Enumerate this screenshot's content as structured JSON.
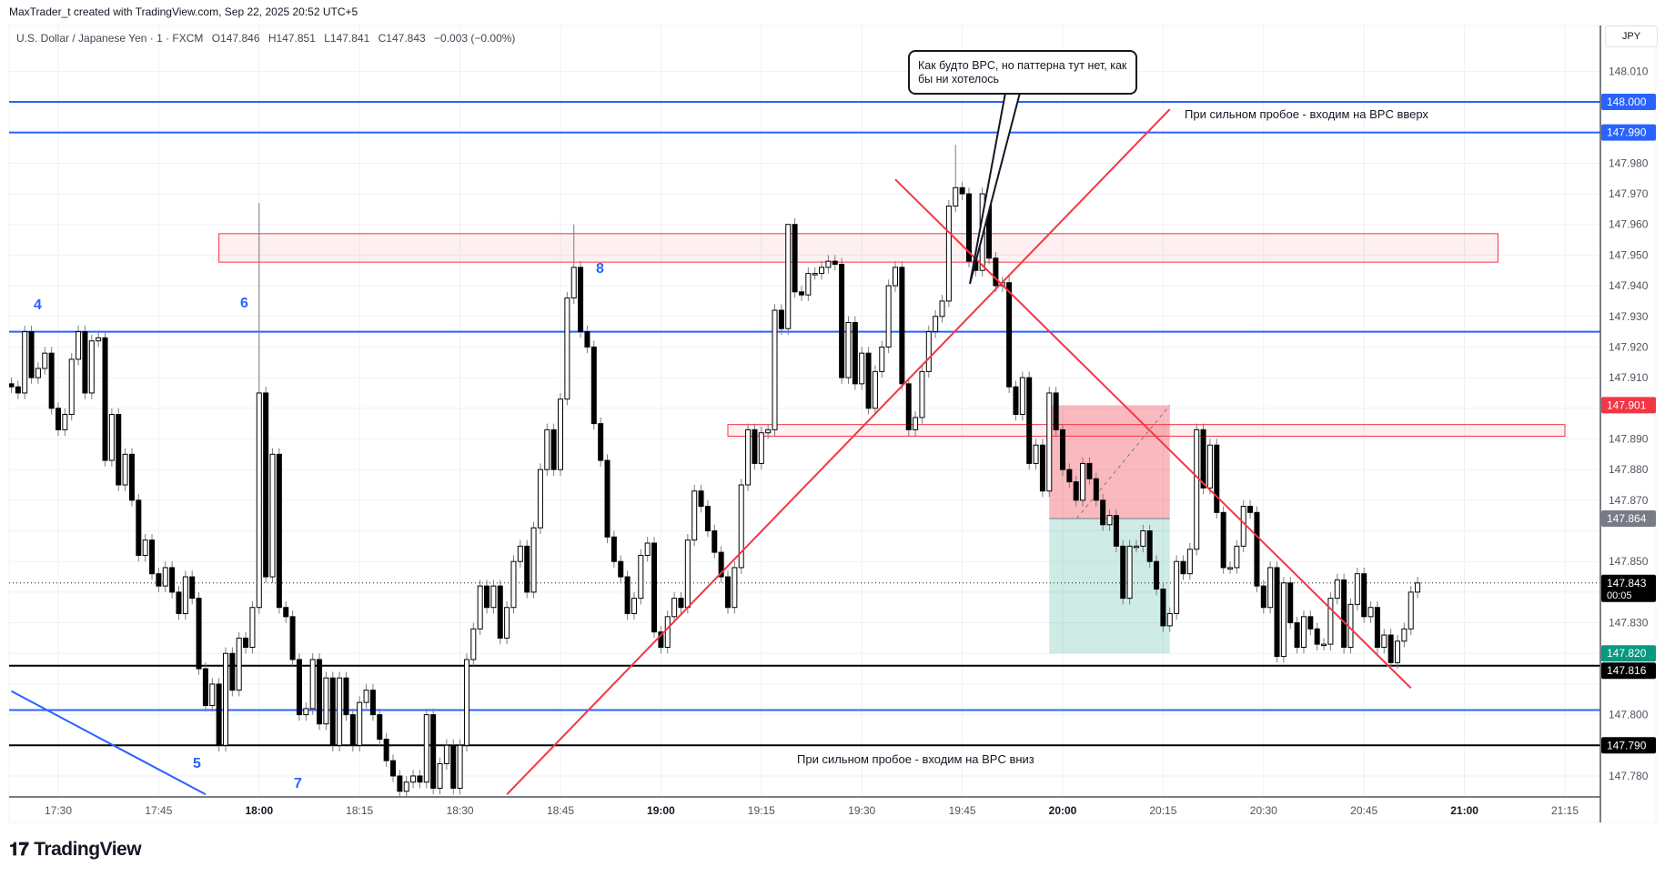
{
  "header": {
    "credit": "MaxTrader_t created with TradingView.com, Sep 22, 2025 20:52 UTC+5",
    "symbol": "U.S. Dollar / Japanese Yen · 1 · FXCM",
    "open": "O147.846",
    "high": "H147.851",
    "low": "L147.841",
    "close": "C147.843",
    "change": "−0.003 (−0.00%)",
    "currency": "JPY"
  },
  "annotations": {
    "callout": "Как будто BPC, но паттерна тут нет, как бы ни хотелось",
    "note_up": "При сильном пробое - входим на BPC вверх",
    "note_down": "При сильном пробое - входим на BPC вниз",
    "waves": [
      "4",
      "5",
      "6",
      "7",
      "8"
    ]
  },
  "logo": "TradingView",
  "colors": {
    "blue": "#2962ff",
    "red": "#f23645",
    "teal": "#089981",
    "gray": "#787b86",
    "black": "#000000"
  },
  "chart_data": {
    "type": "candlestick",
    "symbol": "USDJPY",
    "interval": "1m",
    "start_time": "17:23",
    "closes": [
      147.907,
      147.905,
      147.925,
      147.91,
      147.913,
      147.918,
      147.9,
      147.893,
      147.898,
      147.916,
      147.925,
      147.905,
      147.922,
      147.923,
      147.883,
      147.898,
      147.875,
      147.885,
      147.87,
      147.852,
      147.857,
      147.846,
      147.842,
      147.848,
      147.84,
      147.833,
      147.845,
      147.838,
      147.815,
      147.803,
      147.81,
      147.79,
      147.82,
      147.808,
      147.825,
      147.822,
      147.835,
      147.905,
      147.845,
      147.885,
      147.835,
      147.832,
      147.818,
      147.8,
      147.802,
      147.818,
      147.797,
      147.812,
      147.79,
      147.812,
      147.8,
      147.79,
      147.804,
      147.808,
      147.8,
      147.792,
      147.785,
      147.78,
      147.775,
      147.778,
      147.78,
      147.778,
      147.8,
      147.776,
      147.784,
      147.79,
      147.776,
      147.79,
      147.818,
      147.828,
      147.842,
      147.835,
      147.842,
      147.825,
      147.835,
      147.85,
      147.855,
      147.84,
      147.861,
      147.88,
      147.893,
      147.88,
      147.903,
      147.936,
      147.946,
      147.925,
      147.92,
      147.895,
      147.883,
      147.858,
      147.85,
      147.845,
      147.833,
      147.838,
      147.852,
      147.856,
      147.827,
      147.822,
      147.832,
      147.838,
      147.835,
      147.857,
      147.873,
      147.868,
      147.86,
      147.853,
      147.845,
      147.835,
      147.848,
      147.875,
      147.893,
      147.882,
      147.892,
      147.893,
      147.932,
      147.926,
      147.96,
      147.938,
      147.937,
      147.944,
      147.944,
      147.946,
      147.948,
      147.947,
      147.91,
      147.928,
      147.908,
      147.918,
      147.9,
      147.912,
      147.92,
      147.94,
      147.946,
      147.908,
      147.893,
      147.897,
      147.912,
      147.925,
      147.93,
      147.935,
      147.966,
      147.972,
      147.97,
      147.948,
      147.945,
      147.97,
      147.949,
      147.94,
      147.941,
      147.907,
      147.898,
      147.91,
      147.882,
      147.888,
      147.873,
      147.905,
      147.893,
      147.88,
      147.876,
      147.87,
      147.882,
      147.877,
      147.87,
      147.862,
      147.865,
      147.855,
      147.838,
      147.855,
      147.855,
      147.86,
      147.85,
      147.841,
      147.829,
      147.833,
      147.85,
      147.846,
      147.854,
      147.893,
      147.874,
      147.888,
      147.866,
      147.848,
      147.848,
      147.855,
      147.868,
      147.866,
      147.842,
      147.835,
      147.848,
      147.819,
      147.843,
      147.83,
      147.822,
      147.832,
      147.828,
      147.823,
      147.823,
      147.838,
      147.844,
      147.822,
      147.836,
      147.846,
      147.832,
      147.835,
      147.822,
      147.826,
      147.817,
      147.824,
      147.828,
      147.84,
      147.843
    ],
    "high_overrides": {
      "18:00": 147.967,
      "19:44": 147.986,
      "18:47": 147.96,
      "19:19": 147.96
    },
    "ylim": [
      147.775,
      148.012
    ],
    "y_ticks": [
      "148.010",
      "148.000",
      "147.990",
      "147.980",
      "147.970",
      "147.960",
      "147.950",
      "147.940",
      "147.930",
      "147.920",
      "147.910",
      "147.900",
      "147.890",
      "147.880",
      "147.870",
      "147.860",
      "147.850",
      "147.840",
      "147.830",
      "147.820",
      "147.810",
      "147.800",
      "147.790",
      "147.780"
    ],
    "x_ticks": [
      {
        "t": "17:30",
        "bold": false
      },
      {
        "t": "17:45",
        "bold": false
      },
      {
        "t": "18:00",
        "bold": true
      },
      {
        "t": "18:15",
        "bold": false
      },
      {
        "t": "18:30",
        "bold": false
      },
      {
        "t": "18:45",
        "bold": false
      },
      {
        "t": "19:00",
        "bold": true
      },
      {
        "t": "19:15",
        "bold": false
      },
      {
        "t": "19:30",
        "bold": false
      },
      {
        "t": "19:45",
        "bold": false
      },
      {
        "t": "20:00",
        "bold": true
      },
      {
        "t": "20:15",
        "bold": false
      },
      {
        "t": "20:30",
        "bold": false
      },
      {
        "t": "20:45",
        "bold": false
      },
      {
        "t": "21:00",
        "bold": true
      },
      {
        "t": "21:15",
        "bold": false
      }
    ],
    "last_price": 147.843,
    "countdown": "00:05",
    "hlines": [
      {
        "price": 148.0,
        "color": "#2962ff",
        "label": "148.000"
      },
      {
        "price": 147.99,
        "color": "#2962ff",
        "label": "147.990"
      },
      {
        "price": 147.925,
        "color": "#2962ff"
      },
      {
        "price": 147.8015,
        "color": "#2962ff"
      },
      {
        "price": 147.816,
        "color": "#000000",
        "label": "147.816"
      },
      {
        "price": 147.79,
        "color": "#000000",
        "label": "147.790"
      }
    ],
    "zones": [
      {
        "t1": "17:54",
        "t2": "21:05",
        "p1": 147.957,
        "p2": 147.9477
      },
      {
        "t1": "19:10",
        "t2": "21:15",
        "p1": 147.8947,
        "p2": 147.8909
      }
    ],
    "trendlines": [
      {
        "t1": "17:23",
        "p1": 147.8077,
        "t2": "17:52",
        "p2": 147.774,
        "color": "#2962ff"
      },
      {
        "t1": "18:37",
        "p1": 147.774,
        "t2": "20:16",
        "p2": 147.9976,
        "color": "#f23645"
      },
      {
        "t1": "19:35",
        "p1": 147.9747,
        "t2": "20:52",
        "p2": 147.8087,
        "color": "#f23645"
      }
    ],
    "position": {
      "t1": "19:58",
      "t2": "20:16",
      "entry": 147.864,
      "stop": 147.901,
      "target": 147.82,
      "entry_label": "147.864",
      "stop_label": "147.901",
      "target_label": "147.820"
    }
  }
}
